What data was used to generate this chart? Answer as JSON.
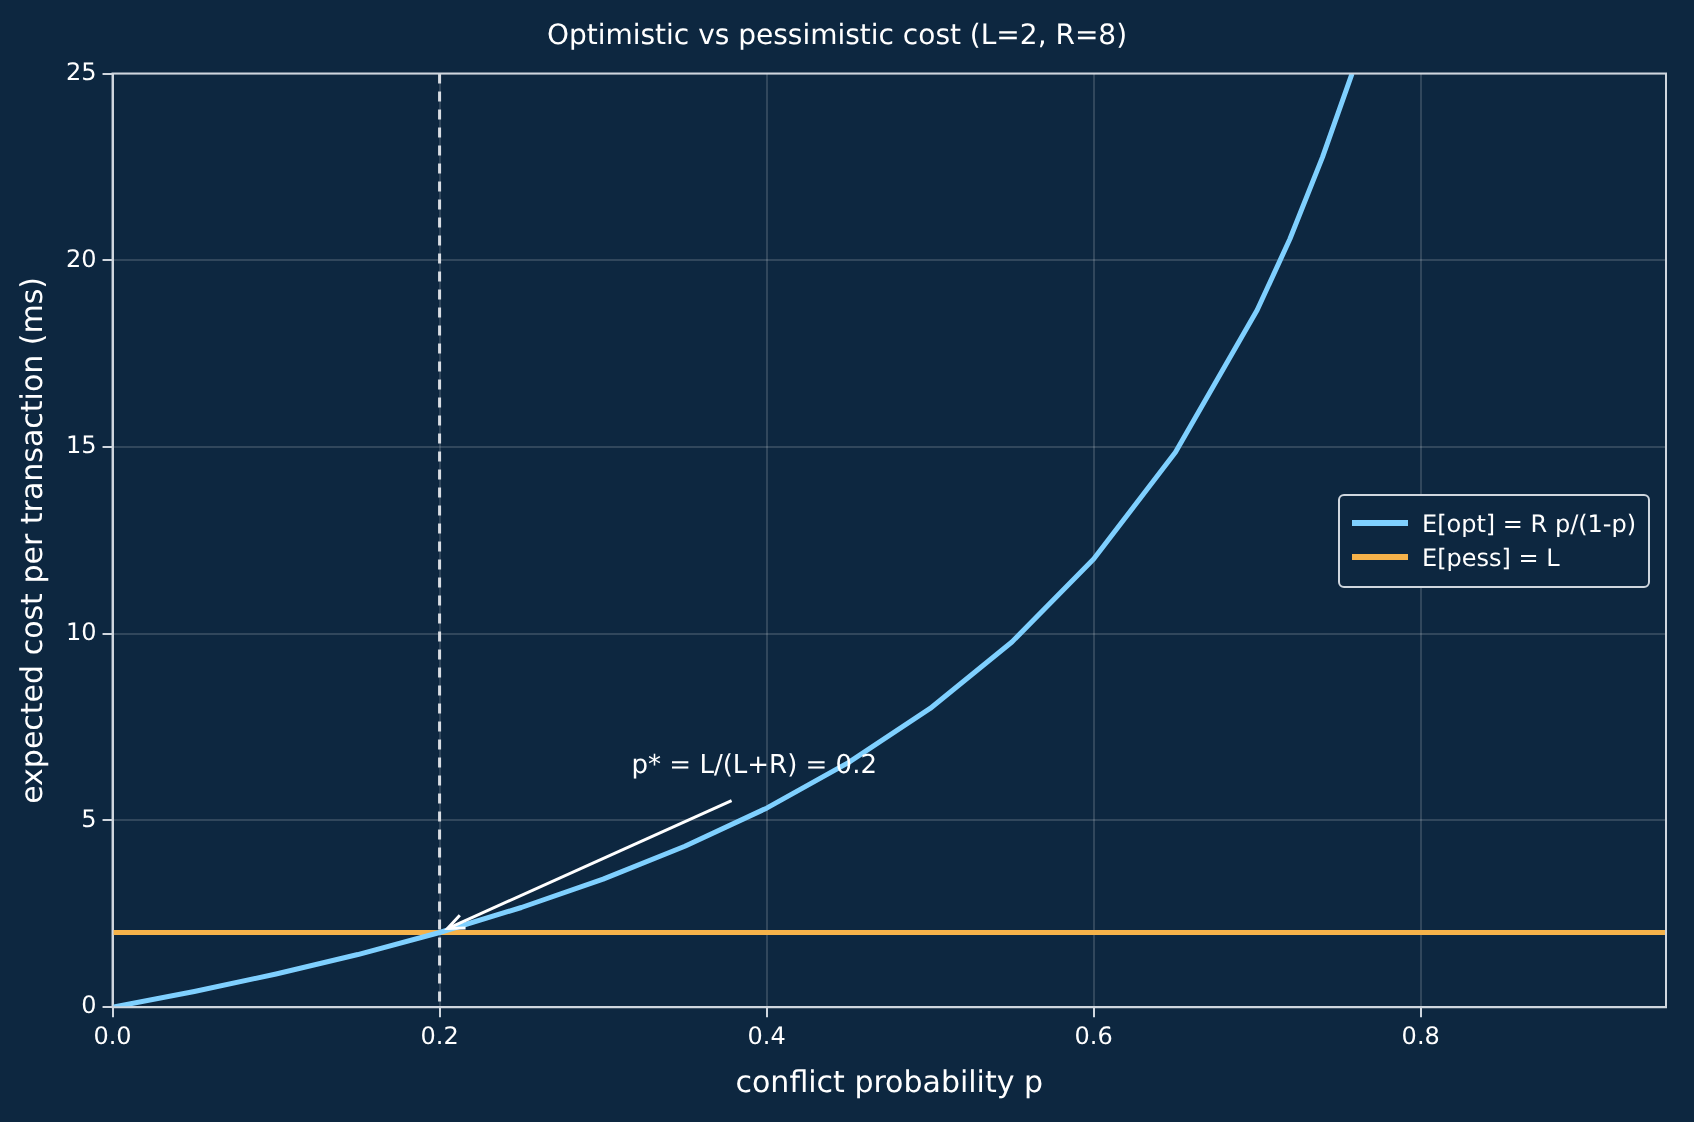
{
  "chart_data": {
    "type": "line",
    "title": "Optimistic vs pessimistic cost (L=2, R=8)",
    "xlabel": "conflict probability p",
    "ylabel": "expected cost per transaction (ms)",
    "series": [
      {
        "name": "E[opt] = R p/(1-p)",
        "color": "#7fd0ff",
        "x": [
          0,
          0.05,
          0.1,
          0.15,
          0.2,
          0.25,
          0.3,
          0.35,
          0.4,
          0.45,
          0.5,
          0.55,
          0.6,
          0.65,
          0.7,
          0.72,
          0.74,
          0.758
        ],
        "values": [
          0,
          0.42,
          0.89,
          1.41,
          2,
          2.67,
          3.43,
          4.31,
          5.33,
          6.55,
          8,
          9.78,
          12,
          14.86,
          18.67,
          20.57,
          22.77,
          25
        ]
      },
      {
        "name": "E[pess] = L",
        "color": "#f5b24a",
        "x": [
          0,
          0.95
        ],
        "values": [
          2,
          2
        ]
      }
    ],
    "xlim": [
      0,
      0.95
    ],
    "xticks": [
      {
        "value": 0,
        "label": "0.0"
      },
      {
        "value": 0.2,
        "label": "0.2"
      },
      {
        "value": 0.4,
        "label": "0.4"
      },
      {
        "value": 0.6,
        "label": "0.6"
      },
      {
        "value": 0.8,
        "label": "0.8"
      }
    ],
    "ylim": [
      0,
      25
    ],
    "yticks": [
      0,
      5,
      10,
      15,
      20,
      25
    ],
    "ref_lines": [
      {
        "axis": "x",
        "value": 0.2,
        "color": "#d8dde3",
        "line_style": "dashed"
      }
    ],
    "annotations": [
      {
        "text": "p* = L/(L+R) = 0.2",
        "x": 0.2,
        "y": 2
      }
    ],
    "grid": true,
    "legend": "right"
  }
}
